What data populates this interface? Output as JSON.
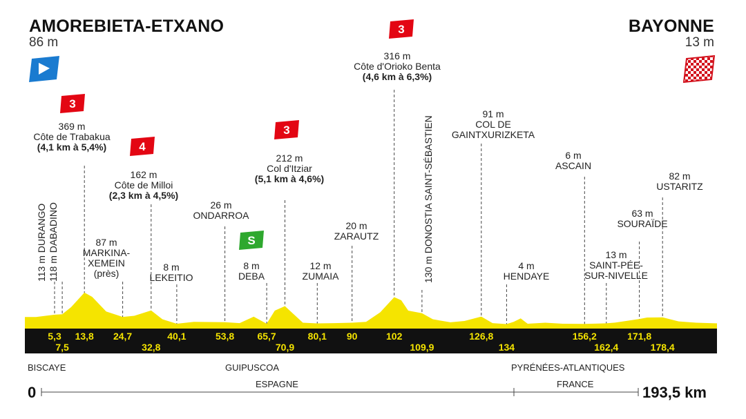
{
  "start": {
    "name": "AMOREBIETA-ETXANO",
    "altitude": "86 m"
  },
  "finish": {
    "name": "BAYONNE",
    "altitude": "13 m"
  },
  "distance_start": "0",
  "distance_total": "193,5 km",
  "colors": {
    "profile": "#f5e400",
    "band": "#111111",
    "climb_badge": "#e30613",
    "sprint_badge": "#2ea82e",
    "start_flag": "#1a7bd0"
  },
  "climbs": [
    {
      "category": "3",
      "altitude": "369 m",
      "name": "Côte de Trabakua",
      "detail": "(4,1 km à 5,4%)"
    },
    {
      "category": "4",
      "altitude": "162 m",
      "name": "Côte de Milloi",
      "detail": "(2,3 km à 4,5%)"
    },
    {
      "category": "3",
      "altitude": "212 m",
      "name": "Col d'Itziar",
      "detail": "(5,1 km à 4,6%)"
    },
    {
      "category": "3",
      "altitude": "316 m",
      "name": "Côte d'Orioko Benta",
      "detail": "(4,6 km à 6,3%)"
    }
  ],
  "sprint": {
    "label": "S",
    "altitude": "8 m",
    "name": "DEBA"
  },
  "places": {
    "durango": "113 m DURANGO",
    "dabadino": "118 m DABADINO",
    "markina": [
      "87 m",
      "MARKINA-",
      "XEMEIN",
      "(près)"
    ],
    "lekeitio": [
      "8 m",
      "LEKEITIO"
    ],
    "ondarroa": [
      "26 m",
      "ONDARROA"
    ],
    "zumaia": [
      "12 m",
      "ZUMAIA"
    ],
    "zarautz": [
      "20 m",
      "ZARAUTZ"
    ],
    "donostia": "130 m DONOSTIA SAINT-SÉBASTIEN",
    "gaintxurizketa": [
      "91 m",
      "COL DE",
      "GAINTXURIZKETA"
    ],
    "hendaye": [
      "4 m",
      "HENDAYE"
    ],
    "ascain": [
      "6 m",
      "ASCAIN"
    ],
    "saintpee": [
      "13 m",
      "SAINT-PÉE-",
      "SUR-NIVELLE"
    ],
    "souraide": [
      "63 m",
      "SOURAÏDE"
    ],
    "ustaritz": [
      "82 m",
      "USTARITZ"
    ]
  },
  "regions": {
    "biscaye": "BISCAYE",
    "guipuscoa": "GUIPUSCOA",
    "pyrenees": "PYRÉNÉES-ATLANTIQUES",
    "espagne": "ESPAGNE",
    "france": "FRANCE"
  },
  "chart_data": {
    "type": "area",
    "x_unit": "km",
    "y_unit": "m",
    "xlim": [
      0,
      193.5
    ],
    "profile": {
      "x": [
        0,
        5.3,
        7.5,
        10,
        13.8,
        16,
        20,
        24.7,
        28,
        32.8,
        36,
        40.1,
        45,
        53.8,
        58,
        62,
        65.7,
        68,
        70.9,
        76,
        80.1,
        85,
        90,
        94,
        98,
        102,
        104,
        106,
        109.9,
        113,
        118,
        122,
        126.8,
        130,
        134,
        136,
        138,
        140,
        145,
        150,
        156.2,
        160,
        162.4,
        165,
        168,
        171.8,
        174,
        178.4,
        183,
        188,
        193.5
      ],
      "y": [
        86,
        113,
        118,
        200,
        369,
        320,
        150,
        87,
        100,
        162,
        60,
        8,
        30,
        26,
        15,
        90,
        8,
        160,
        212,
        20,
        12,
        15,
        20,
        30,
        140,
        316,
        280,
        160,
        130,
        60,
        25,
        40,
        91,
        15,
        4,
        30,
        70,
        8,
        20,
        8,
        6,
        10,
        13,
        22,
        40,
        63,
        80,
        82,
        35,
        20,
        13
      ]
    },
    "km_markers_top": [
      "5,3",
      "13,8",
      "24,7",
      "40,1",
      "53,8",
      "65,7",
      "80,1",
      "90",
      "102",
      "126,8",
      "156,2",
      "171,8"
    ],
    "km_markers_bottom": [
      "7,5",
      "32,8",
      "70,9",
      "109,9",
      "134",
      "162,4",
      "178,4"
    ],
    "km_markers_top_values": [
      5.3,
      13.8,
      24.7,
      40.1,
      53.8,
      65.7,
      80.1,
      90,
      102,
      126.8,
      156.2,
      171.8
    ],
    "km_markers_bottom_values": [
      7.5,
      32.8,
      70.9,
      109.9,
      134,
      162.4,
      178.4
    ],
    "border_km": 145
  }
}
